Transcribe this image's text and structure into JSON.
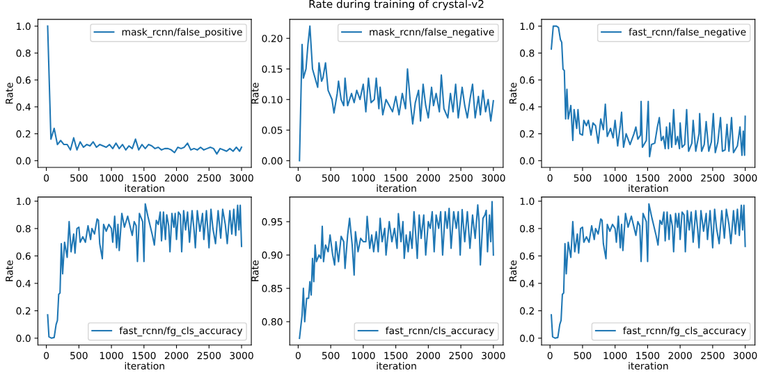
{
  "chart_data": [
    {
      "type": "line",
      "xlabel": "iteration",
      "ylabel": "Rate",
      "legend": "top right",
      "xlim": [
        -130,
        3150
      ],
      "xticks": [
        0,
        500,
        1000,
        1500,
        2000,
        2500,
        3000
      ],
      "ylim": [
        -0.05,
        1.05
      ],
      "yticks": [
        {
          "value": 0,
          "label": "0.0"
        },
        0.2,
        0.4,
        0.6,
        0.8,
        {
          "value": 1,
          "label": "1.0"
        }
      ],
      "x": [
        20,
        70,
        120,
        170,
        220,
        270,
        320,
        370,
        420,
        470,
        520,
        570,
        620,
        670,
        720,
        770,
        820,
        870,
        920,
        970,
        1020,
        1070,
        1120,
        1170,
        1220,
        1270,
        1320,
        1370,
        1420,
        1470,
        1520,
        1570,
        1620,
        1670,
        1720,
        1770,
        1820,
        1870,
        1920,
        1970,
        2020,
        2070,
        2120,
        2170,
        2220,
        2270,
        2320,
        2370,
        2420,
        2470,
        2520,
        2570,
        2620,
        2670,
        2720,
        2770,
        2820,
        2870,
        2920,
        2970,
        3000
      ],
      "series": [
        {
          "name": "mask_rcnn/false_positive",
          "color": "#1f77b4",
          "values": [
            1.0,
            0.16,
            0.24,
            0.12,
            0.15,
            0.12,
            0.12,
            0.08,
            0.17,
            0.08,
            0.14,
            0.1,
            0.12,
            0.11,
            0.14,
            0.1,
            0.12,
            0.11,
            0.1,
            0.12,
            0.09,
            0.13,
            0.09,
            0.12,
            0.08,
            0.11,
            0.09,
            0.16,
            0.08,
            0.12,
            0.09,
            0.12,
            0.11,
            0.09,
            0.1,
            0.08,
            0.09,
            0.09,
            0.08,
            0.06,
            0.1,
            0.09,
            0.1,
            0.13,
            0.08,
            0.09,
            0.08,
            0.1,
            0.08,
            0.09,
            0.1,
            0.09,
            0.05,
            0.09,
            0.08,
            0.07,
            0.09,
            0.07,
            0.1,
            0.07,
            0.1
          ]
        }
      ]
    },
    {
      "type": "line",
      "title": "Rate during training of crystal-v2",
      "xlabel": "iteration",
      "ylabel": "Rate",
      "legend": "top right",
      "xlim": [
        -130,
        3150
      ],
      "xticks": [
        0,
        500,
        1000,
        1500,
        2000,
        2500,
        3000
      ],
      "ylim": [
        -0.011,
        0.231
      ],
      "yticks": [
        {
          "value": 0,
          "label": "0.00"
        },
        0.05,
        {
          "value": 0.1,
          "label": "0.10"
        },
        0.15,
        {
          "value": 0.2,
          "label": "0.20"
        }
      ],
      "x": [
        20,
        60,
        80,
        120,
        150,
        180,
        220,
        260,
        300,
        320,
        360,
        380,
        420,
        460,
        520,
        550,
        600,
        620,
        660,
        700,
        720,
        760,
        820,
        860,
        900,
        950,
        1000,
        1040,
        1080,
        1120,
        1170,
        1200,
        1240,
        1260,
        1300,
        1350,
        1400,
        1450,
        1500,
        1550,
        1600,
        1650,
        1680,
        1720,
        1760,
        1800,
        1850,
        1880,
        1920,
        1960,
        2000,
        2050,
        2080,
        2120,
        2170,
        2200,
        2240,
        2300,
        2340,
        2380,
        2420,
        2460,
        2520,
        2560,
        2600,
        2640,
        2680,
        2720,
        2770,
        2800,
        2840,
        2880,
        2920,
        2960,
        3000
      ],
      "series": [
        {
          "name": "mask_rcnn/false_negative",
          "color": "#1f77b4",
          "values": [
            0.0,
            0.19,
            0.135,
            0.15,
            0.19,
            0.22,
            0.15,
            0.135,
            0.12,
            0.16,
            0.13,
            0.135,
            0.16,
            0.115,
            0.1,
            0.078,
            0.11,
            0.13,
            0.1,
            0.09,
            0.135,
            0.09,
            0.11,
            0.095,
            0.115,
            0.1,
            0.125,
            0.08,
            0.135,
            0.095,
            0.1,
            0.135,
            0.085,
            0.12,
            0.075,
            0.1,
            0.09,
            0.08,
            0.105,
            0.075,
            0.11,
            0.085,
            0.15,
            0.1,
            0.06,
            0.095,
            0.115,
            0.065,
            0.125,
            0.09,
            0.07,
            0.12,
            0.09,
            0.11,
            0.08,
            0.14,
            0.085,
            0.07,
            0.11,
            0.08,
            0.125,
            0.07,
            0.12,
            0.09,
            0.07,
            0.1,
            0.125,
            0.07,
            0.105,
            0.075,
            0.115,
            0.08,
            0.1,
            0.065,
            0.098
          ]
        }
      ]
    },
    {
      "type": "line",
      "xlabel": "iteration",
      "ylabel": "Rate",
      "legend": "top right",
      "xlim": [
        -130,
        3150
      ],
      "xticks": [
        0,
        500,
        1000,
        1500,
        2000,
        2500,
        3000
      ],
      "ylim": [
        -0.05,
        1.05
      ],
      "yticks": [
        {
          "value": 0,
          "label": "0.0"
        },
        0.2,
        0.4,
        0.6,
        0.8,
        {
          "value": 1,
          "label": "1.0"
        }
      ],
      "x": [
        20,
        50,
        100,
        130,
        160,
        180,
        200,
        220,
        240,
        260,
        280,
        320,
        350,
        370,
        410,
        430,
        460,
        500,
        520,
        560,
        590,
        630,
        660,
        700,
        740,
        780,
        820,
        850,
        880,
        930,
        970,
        1000,
        1040,
        1080,
        1100,
        1130,
        1170,
        1230,
        1290,
        1320,
        1350,
        1390,
        1400,
        1420,
        1480,
        1510,
        1530,
        1560,
        1610,
        1650,
        1680,
        1710,
        1740,
        1770,
        1790,
        1820,
        1840,
        1870,
        1900,
        1930,
        1960,
        1990,
        2000,
        2030,
        2070,
        2100,
        2130,
        2180,
        2200,
        2240,
        2290,
        2300,
        2330,
        2370,
        2400,
        2440,
        2480,
        2510,
        2540,
        2580,
        2620,
        2650,
        2690,
        2720,
        2750,
        2790,
        2820,
        2880,
        2920,
        2950,
        2970,
        2990,
        3000
      ],
      "series": [
        {
          "name": "fast_rcnn/false_negative",
          "color": "#1f77b4",
          "values": [
            0.83,
            1.0,
            1.0,
            0.99,
            0.9,
            0.88,
            0.68,
            0.67,
            0.31,
            0.53,
            0.31,
            0.41,
            0.15,
            0.38,
            0.24,
            0.38,
            0.2,
            0.19,
            0.3,
            0.26,
            0.3,
            0.19,
            0.28,
            0.26,
            0.13,
            0.31,
            0.23,
            0.42,
            0.18,
            0.24,
            0.17,
            0.3,
            0.11,
            0.26,
            0.36,
            0.1,
            0.2,
            0.12,
            0.2,
            0.25,
            0.16,
            0.19,
            0.44,
            0.1,
            0.15,
            0.44,
            0.03,
            0.12,
            0.13,
            0.25,
            0.32,
            0.15,
            0.18,
            0.09,
            0.25,
            0.09,
            0.28,
            0.1,
            0.38,
            0.12,
            0.18,
            0.09,
            0.28,
            0.1,
            0.12,
            0.38,
            0.07,
            0.13,
            0.3,
            0.07,
            0.2,
            0.35,
            0.07,
            0.12,
            0.29,
            0.07,
            0.14,
            0.35,
            0.06,
            0.14,
            0.32,
            0.07,
            0.08,
            0.27,
            0.07,
            0.32,
            0.06,
            0.11,
            0.25,
            0.04,
            0.22,
            0.04,
            0.33
          ]
        }
      ]
    },
    {
      "type": "line",
      "xlabel": "iteration",
      "ylabel": "Rate",
      "legend": "bottom right",
      "xlim": [
        -130,
        3150
      ],
      "xticks": [
        0,
        500,
        1000,
        1500,
        2000,
        2500,
        3000
      ],
      "ylim": [
        -0.05,
        1.03
      ],
      "yticks": [
        {
          "value": 0,
          "label": "0.0"
        },
        0.2,
        0.4,
        0.6,
        0.8,
        {
          "value": 1,
          "label": "1.0"
        }
      ],
      "x": [
        20,
        40,
        80,
        120,
        150,
        170,
        190,
        210,
        230,
        250,
        280,
        320,
        350,
        380,
        420,
        440,
        470,
        500,
        520,
        560,
        600,
        640,
        680,
        700,
        740,
        780,
        800,
        820,
        860,
        880,
        920,
        960,
        1000,
        1020,
        1050,
        1080,
        1100,
        1120,
        1160,
        1200,
        1250,
        1300,
        1320,
        1350,
        1380,
        1400,
        1430,
        1480,
        1500,
        1520,
        1560,
        1600,
        1630,
        1660,
        1690,
        1720,
        1750,
        1770,
        1800,
        1830,
        1850,
        1880,
        1900,
        1930,
        1960,
        1980,
        2000,
        2030,
        2060,
        2080,
        2110,
        2140,
        2170,
        2200,
        2240,
        2270,
        2290,
        2320,
        2360,
        2400,
        2420,
        2460,
        2480,
        2500,
        2530,
        2560,
        2600,
        2640,
        2680,
        2710,
        2750,
        2780,
        2820,
        2850,
        2880,
        2910,
        2940,
        2960,
        2980,
        3000
      ],
      "series": [
        {
          "name": "fast_rcnn/fg_cls_accuracy",
          "color": "#1f77b4",
          "values": [
            0.17,
            0.01,
            0.0,
            0.005,
            0.1,
            0.13,
            0.32,
            0.33,
            0.69,
            0.47,
            0.7,
            0.59,
            0.85,
            0.63,
            0.76,
            0.62,
            0.8,
            0.81,
            0.7,
            0.74,
            0.7,
            0.82,
            0.72,
            0.8,
            0.76,
            0.87,
            0.86,
            0.69,
            0.58,
            0.83,
            0.78,
            0.83,
            0.8,
            0.7,
            0.89,
            0.66,
            0.83,
            0.64,
            0.91,
            0.81,
            0.89,
            0.79,
            0.75,
            0.85,
            0.82,
            0.56,
            0.91,
            0.85,
            0.56,
            0.98,
            0.89,
            0.81,
            0.75,
            0.68,
            0.86,
            0.83,
            0.92,
            0.71,
            0.92,
            0.72,
            0.9,
            0.82,
            0.63,
            0.91,
            0.81,
            0.91,
            0.72,
            0.92,
            0.9,
            0.63,
            0.93,
            0.79,
            0.92,
            0.7,
            0.93,
            0.79,
            0.66,
            0.93,
            0.78,
            0.91,
            0.72,
            0.93,
            0.8,
            0.66,
            0.94,
            0.8,
            0.69,
            0.93,
            0.73,
            0.94,
            0.83,
            0.69,
            0.93,
            0.76,
            0.94,
            0.75,
            0.97,
            0.79,
            0.97,
            0.67
          ]
        }
      ]
    },
    {
      "type": "line",
      "xlabel": "iteration",
      "ylabel": "Rate",
      "legend": "bottom right",
      "xlim": [
        -130,
        3150
      ],
      "xticks": [
        0,
        500,
        1000,
        1500,
        2000,
        2500,
        3000
      ],
      "ylim": [
        0.765,
        0.987
      ],
      "yticks": [
        {
          "value": 0.8,
          "label": "0.80"
        },
        0.85,
        {
          "value": 0.9,
          "label": "0.90"
        },
        0.95
      ],
      "x": [
        20,
        60,
        80,
        100,
        130,
        160,
        180,
        200,
        220,
        240,
        260,
        280,
        320,
        350,
        370,
        390,
        420,
        460,
        490,
        530,
        560,
        580,
        620,
        660,
        700,
        720,
        760,
        790,
        830,
        860,
        880,
        920,
        960,
        1000,
        1040,
        1060,
        1100,
        1130,
        1160,
        1200,
        1230,
        1260,
        1290,
        1330,
        1350,
        1400,
        1440,
        1480,
        1520,
        1540,
        1580,
        1610,
        1630,
        1660,
        1690,
        1720,
        1750,
        1780,
        1800,
        1830,
        1860,
        1890,
        1930,
        1960,
        2000,
        2030,
        2060,
        2090,
        2120,
        2160,
        2190,
        2220,
        2260,
        2290,
        2320,
        2350,
        2390,
        2430,
        2460,
        2490,
        2520,
        2560,
        2600,
        2640,
        2680,
        2720,
        2760,
        2780,
        2800,
        2840,
        2870,
        2890,
        2910,
        2940,
        2960,
        2980,
        3000
      ],
      "series": [
        {
          "name": "fast_rcnn/cls_accuracy",
          "color": "#1f77b4",
          "values": [
            0.775,
            0.81,
            0.85,
            0.8,
            0.835,
            0.835,
            0.86,
            0.84,
            0.895,
            0.86,
            0.915,
            0.89,
            0.9,
            0.895,
            0.943,
            0.89,
            0.915,
            0.905,
            0.93,
            0.9,
            0.885,
            0.92,
            0.89,
            0.928,
            0.92,
            0.88,
            0.93,
            0.955,
            0.915,
            0.87,
            0.935,
            0.905,
            0.925,
            0.92,
            0.92,
            0.958,
            0.91,
            0.93,
            0.905,
            0.935,
            0.905,
            0.955,
            0.92,
            0.94,
            0.9,
            0.95,
            0.92,
            0.94,
            0.91,
            0.962,
            0.92,
            0.95,
            0.895,
            0.93,
            0.905,
            0.935,
            0.91,
            0.965,
            0.94,
            0.895,
            0.96,
            0.925,
            0.96,
            0.9,
            0.95,
            0.94,
            0.965,
            0.905,
            0.96,
            0.94,
            0.965,
            0.9,
            0.965,
            0.94,
            0.97,
            0.91,
            0.965,
            0.94,
            0.965,
            0.9,
            0.968,
            0.92,
            0.965,
            0.91,
            0.96,
            0.925,
            0.975,
            0.95,
            0.885,
            0.955,
            0.96,
            0.967,
            0.905,
            0.96,
            0.92,
            0.98,
            0.9
          ]
        }
      ]
    },
    {
      "type": "line",
      "xlabel": "iteration",
      "ylabel": "Rate",
      "legend": "bottom right",
      "xlim": [
        -130,
        3150
      ],
      "xticks": [
        0,
        500,
        1000,
        1500,
        2000,
        2500,
        3000
      ],
      "ylim": [
        -0.05,
        1.03
      ],
      "yticks": [
        {
          "value": 0,
          "label": "0.0"
        },
        0.2,
        0.4,
        0.6,
        0.8,
        {
          "value": 1,
          "label": "1.0"
        }
      ],
      "x": [
        20,
        40,
        80,
        120,
        150,
        170,
        190,
        210,
        230,
        250,
        280,
        320,
        350,
        380,
        420,
        440,
        470,
        500,
        520,
        560,
        600,
        640,
        680,
        700,
        740,
        780,
        800,
        820,
        860,
        880,
        920,
        960,
        1000,
        1020,
        1050,
        1080,
        1100,
        1120,
        1160,
        1200,
        1250,
        1300,
        1320,
        1350,
        1380,
        1400,
        1430,
        1480,
        1500,
        1520,
        1560,
        1600,
        1630,
        1660,
        1690,
        1720,
        1750,
        1770,
        1800,
        1830,
        1850,
        1880,
        1900,
        1930,
        1960,
        1980,
        2000,
        2030,
        2060,
        2080,
        2110,
        2140,
        2170,
        2200,
        2240,
        2270,
        2290,
        2320,
        2360,
        2400,
        2420,
        2460,
        2480,
        2500,
        2530,
        2560,
        2600,
        2640,
        2680,
        2710,
        2750,
        2780,
        2820,
        2850,
        2880,
        2910,
        2940,
        2960,
        2980,
        3000
      ],
      "series": [
        {
          "name": "fast_rcnn/fg_cls_accuracy",
          "color": "#1f77b4",
          "values": [
            0.17,
            0.01,
            0.0,
            0.005,
            0.1,
            0.13,
            0.32,
            0.33,
            0.69,
            0.47,
            0.7,
            0.59,
            0.85,
            0.63,
            0.76,
            0.62,
            0.8,
            0.81,
            0.7,
            0.74,
            0.7,
            0.82,
            0.72,
            0.8,
            0.76,
            0.87,
            0.86,
            0.69,
            0.58,
            0.83,
            0.78,
            0.83,
            0.8,
            0.7,
            0.89,
            0.66,
            0.83,
            0.64,
            0.91,
            0.81,
            0.89,
            0.79,
            0.75,
            0.85,
            0.82,
            0.56,
            0.91,
            0.85,
            0.56,
            0.98,
            0.89,
            0.81,
            0.75,
            0.68,
            0.86,
            0.83,
            0.92,
            0.71,
            0.92,
            0.72,
            0.9,
            0.82,
            0.63,
            0.91,
            0.81,
            0.91,
            0.72,
            0.92,
            0.9,
            0.63,
            0.93,
            0.79,
            0.92,
            0.7,
            0.93,
            0.79,
            0.66,
            0.93,
            0.78,
            0.91,
            0.72,
            0.93,
            0.8,
            0.66,
            0.94,
            0.8,
            0.69,
            0.93,
            0.73,
            0.94,
            0.83,
            0.69,
            0.93,
            0.76,
            0.94,
            0.75,
            0.97,
            0.79,
            0.97,
            0.67
          ]
        }
      ]
    }
  ]
}
